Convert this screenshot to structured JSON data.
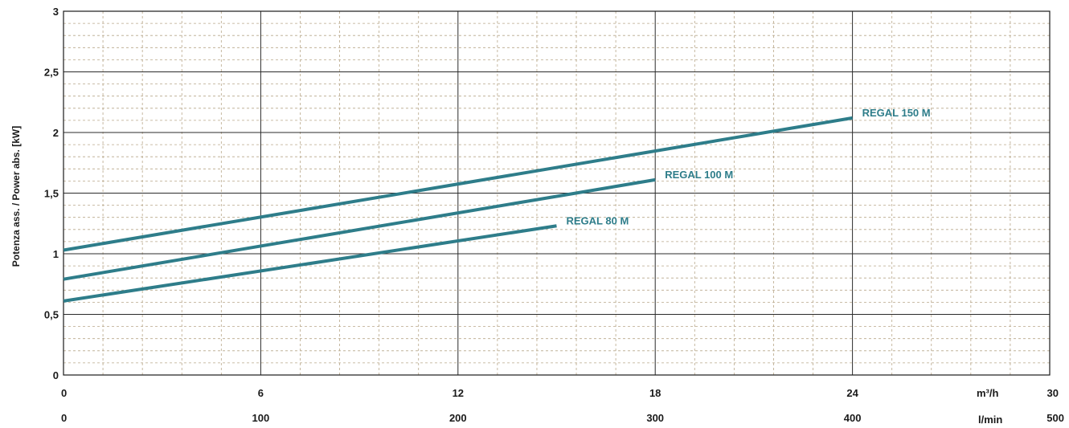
{
  "chart_data": {
    "type": "line",
    "ylabel": "Potenza ass. / Power abs. [kW]",
    "ylim": [
      0,
      3
    ],
    "yticks": [
      "0",
      "0,5",
      "1",
      "1,5",
      "2",
      "2,5",
      "3"
    ],
    "x_axis_primary": {
      "unit": "m³/h",
      "range": [
        0,
        30
      ],
      "ticks": [
        "0",
        "6",
        "12",
        "18",
        "24",
        "30"
      ]
    },
    "x_axis_secondary": {
      "unit": "l/min",
      "range": [
        0,
        500
      ],
      "ticks": [
        "0",
        "100",
        "200",
        "300",
        "400",
        "500"
      ]
    },
    "grid": true,
    "series_color": "#2e7d8a",
    "series": [
      {
        "name": "REGAL 80 M",
        "x": [
          0,
          15
        ],
        "y": [
          0.61,
          1.23
        ]
      },
      {
        "name": "REGAL 100 M",
        "x": [
          0,
          18
        ],
        "y": [
          0.79,
          1.61
        ]
      },
      {
        "name": "REGAL 150 M",
        "x": [
          0,
          24
        ],
        "y": [
          1.03,
          2.12
        ]
      }
    ]
  }
}
